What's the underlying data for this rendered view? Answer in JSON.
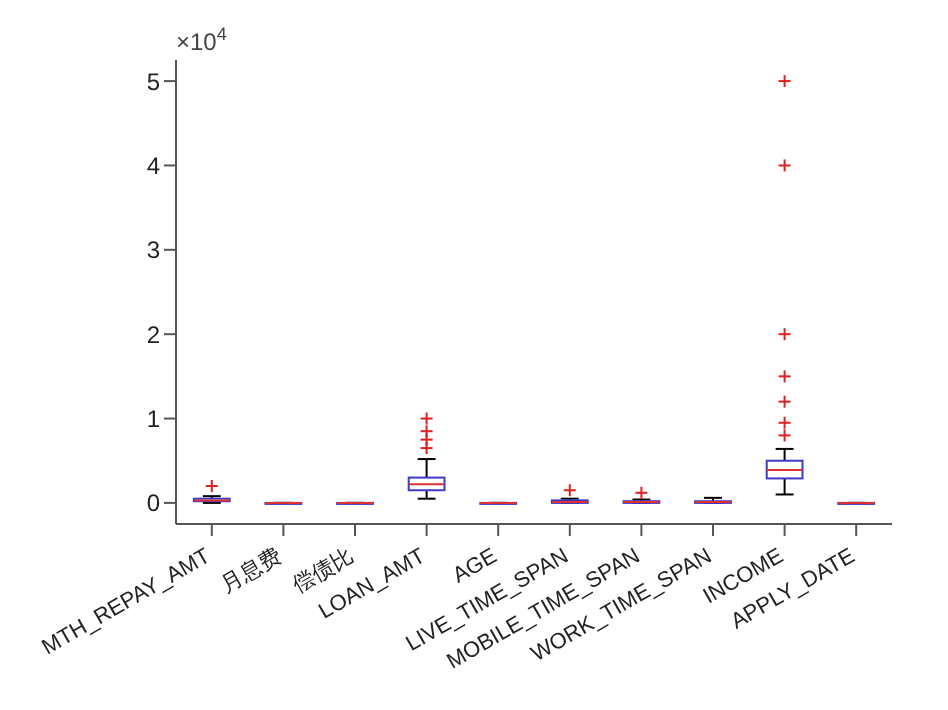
{
  "chart_data": {
    "type": "box",
    "categories": [
      "MTH_REPAY_AMT",
      "月息费",
      "偿债比",
      "LOAN_AMT",
      "AGE",
      "LIVE_TIME_SPAN",
      "MOBILE_TIME_SPAN",
      "WORK_TIME_SPAN",
      "INCOME",
      "APPLY_DATE"
    ],
    "series": [
      {
        "color": "#3c3cc8",
        "boxes": [
          {
            "low": 0,
            "q1": 0.02,
            "median": 0.03,
            "q3": 0.05,
            "high": 0.08,
            "outliers": [
              0.2
            ]
          },
          {
            "low": 0,
            "q1": 0,
            "median": 0,
            "q3": 0,
            "high": 0
          },
          {
            "low": 0,
            "q1": 0,
            "median": 0,
            "q3": 0,
            "high": 0
          },
          {
            "low": 0.05,
            "q1": 0.15,
            "median": 0.22,
            "q3": 0.3,
            "high": 0.52,
            "outliers": [
              0.65,
              0.75,
              0.85,
              1.0
            ]
          },
          {
            "low": 0,
            "q1": 0,
            "median": 0,
            "q3": 0,
            "high": 0
          },
          {
            "low": 0,
            "q1": 0,
            "median": 0.01,
            "q3": 0.03,
            "high": 0.05,
            "outliers": [
              0.15
            ]
          },
          {
            "low": 0,
            "q1": 0,
            "median": 0.01,
            "q3": 0.02,
            "high": 0.04,
            "outliers": [
              0.12
            ]
          },
          {
            "low": 0,
            "q1": 0,
            "median": 0.01,
            "q3": 0.02,
            "high": 0.06
          },
          {
            "low": 0.1,
            "q1": 0.29,
            "median": 0.39,
            "q3": 0.5,
            "high": 0.64,
            "outliers": [
              0.8,
              0.95,
              1.2,
              1.5,
              2.0,
              4.0,
              5.0
            ]
          },
          {
            "low": 0,
            "q1": 0,
            "median": 0,
            "q3": 0,
            "high": 0
          }
        ]
      }
    ],
    "ylim": [
      -0.25,
      5.25
    ],
    "yticks": [
      0,
      1,
      2,
      3,
      4,
      5
    ],
    "annotations": [
      "×10$^{4}$"
    ],
    "grid": false
  }
}
